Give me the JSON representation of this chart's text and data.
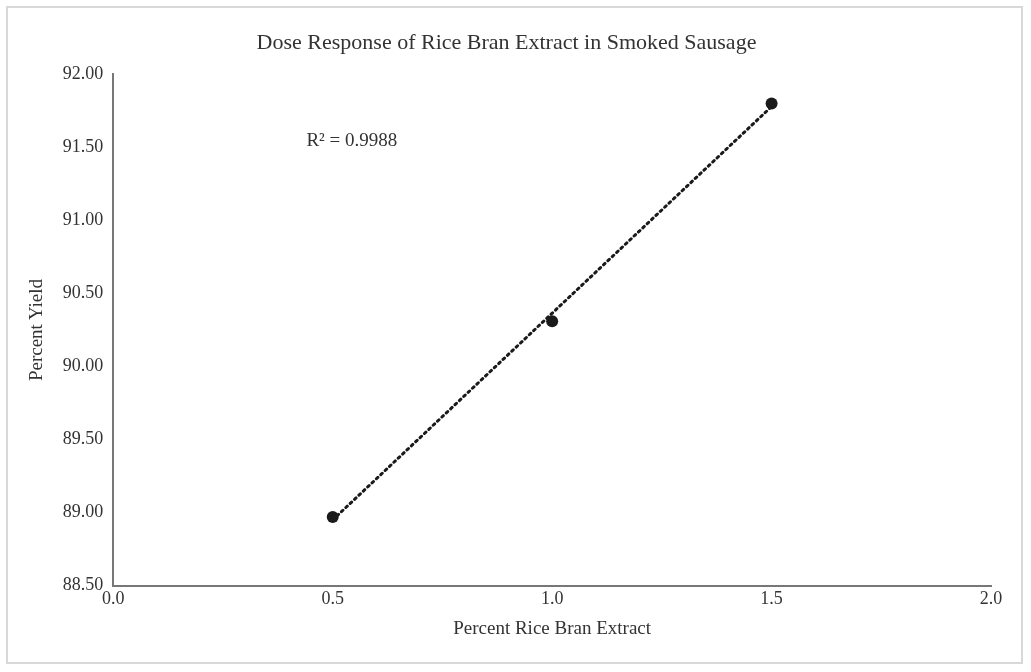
{
  "chart_data": {
    "type": "scatter",
    "title": "Dose Response of Rice Bran Extract in Smoked Sausage",
    "xlabel": "Percent Rice Bran Extract",
    "ylabel": "Percent Yield",
    "x": [
      0.5,
      1.0,
      1.5
    ],
    "series": [
      {
        "color": "#1a1a1a",
        "values": [
          88.97,
          90.31,
          91.8
        ],
        "marker": "circle"
      },
      {
        "type": "line",
        "color": "#1a1a1a",
        "x": [
          0.5,
          1.5
        ],
        "values": [
          88.95,
          91.78
        ],
        "line_style": "dotted",
        "marker": "none"
      }
    ],
    "xlim": [
      0,
      2
    ],
    "xticks": [
      {
        "value": 0,
        "label": "0.0"
      },
      {
        "value": 0.5,
        "label": "0.5"
      },
      {
        "value": 1,
        "label": "1.0"
      },
      {
        "value": 1.5,
        "label": "1.5"
      },
      {
        "value": 2,
        "label": "2.0"
      }
    ],
    "ylim": [
      88.5,
      92
    ],
    "yticks": [
      {
        "value": 88.5,
        "label": "88.50"
      },
      {
        "value": 89,
        "label": "89.00"
      },
      {
        "value": 89.5,
        "label": "89.50"
      },
      {
        "value": 90,
        "label": "90.00"
      },
      {
        "value": 90.5,
        "label": "90.50"
      },
      {
        "value": 91,
        "label": "91.00"
      },
      {
        "value": 91.5,
        "label": "91.50"
      },
      {
        "value": 92,
        "label": "92.00"
      }
    ],
    "grid": false,
    "legend": false,
    "annotations": [
      "R² = 0.9988"
    ]
  }
}
